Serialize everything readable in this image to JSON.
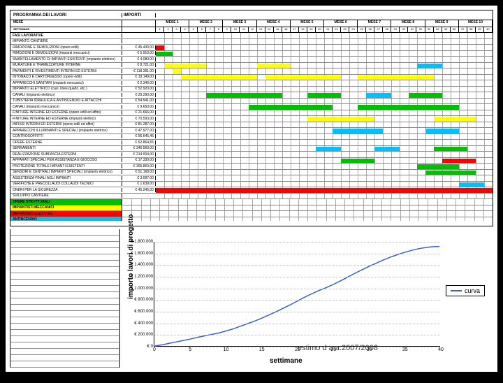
{
  "header": {
    "col1": "PROGRAMMA DEI LAVORI",
    "col2": "IMPORTI"
  },
  "subheader": {
    "label1": "MESE",
    "label2": "SETTIMANE"
  },
  "months": [
    "MESE 1",
    "MESE 2",
    "MESE 3",
    "MESE 4",
    "MESE 5",
    "MESE 6",
    "MESE 7",
    "MESE 8",
    "MESE 9",
    "MESE 10"
  ],
  "weeks_per_month": 4,
  "total_weeks": 40,
  "section_label": "FASI LAVORATIVE",
  "colors": {
    "red": "#ff0000",
    "yellow": "#ffff00",
    "green": "#00c000",
    "cyan": "#00c0ff",
    "row_border": "#888888",
    "grid": "#aaaaaa",
    "curve": "#3a5fcd"
  },
  "tasks": [
    {
      "label": "IMPIANTO CANTIERE",
      "amount": "",
      "bars": []
    },
    {
      "label": "RIMOZIONE E DEMOLIZIONI (opere edili)",
      "amount": "€ 45.430,00",
      "bars": [
        {
          "s": 0,
          "e": 1,
          "c": "red"
        }
      ]
    },
    {
      "label": "RIMOZIONI E DEMOLIZIONI (impianti meccanici)",
      "amount": "€ 5.910,00",
      "bars": [
        {
          "s": 0,
          "e": 2,
          "c": "green"
        }
      ]
    },
    {
      "label": "SMANTELLAMENTO DI IMPIANTI ESISTENTI (impianto elettrico)",
      "amount": "€ 4.080,00",
      "bars": []
    },
    {
      "label": "MURATURE E TRAMEZZATURE INTERNE",
      "amount": "€ 8.721,00",
      "bars": [
        {
          "s": 1,
          "e": 6,
          "c": "yellow"
        },
        {
          "s": 12,
          "e": 16,
          "c": "yellow"
        },
        {
          "s": 31,
          "e": 34,
          "c": "cyan"
        }
      ]
    },
    {
      "label": "PAVIMENTI E RIVESTIMENTI INTERNI ED ESTERNI",
      "amount": "€ 118.391,00",
      "bars": [
        {
          "s": 2,
          "e": 3,
          "c": "yellow"
        }
      ]
    },
    {
      "label": "INTONACO E CARTONGESSO (opere edili)",
      "amount": "€ 19.149,00",
      "bars": [
        {
          "s": 3,
          "e": 12,
          "c": "yellow"
        },
        {
          "s": 13,
          "e": 22,
          "c": "yellow"
        },
        {
          "s": 24,
          "e": 33,
          "c": "yellow"
        }
      ]
    },
    {
      "label": "APPARECCHI SANITARI (impianti meccanici)",
      "amount": "€ 2.340,00",
      "bars": []
    },
    {
      "label": "IMPIANTO ELETTRICO (cavi, linee,quadri, etc.)",
      "amount": "€ 52.920,00",
      "bars": []
    },
    {
      "label": "CANALI (impianto elettrico)",
      "amount": "€ 29.290,00",
      "bars": [
        {
          "s": 6,
          "e": 15,
          "c": "green"
        },
        {
          "s": 18,
          "e": 22,
          "c": "green"
        },
        {
          "s": 25,
          "e": 28,
          "c": "cyan"
        },
        {
          "s": 30,
          "e": 34,
          "c": "green"
        }
      ]
    },
    {
      "label": "TUBISTERIA IDRAULICA E ANTINCENDIO E ATTACCHI",
      "amount": "€ 54.541,00",
      "bars": []
    },
    {
      "label": "CANALI (impianto meccanico)",
      "amount": "€ 9.650,00",
      "bars": [
        {
          "s": 11,
          "e": 21,
          "c": "green"
        },
        {
          "s": 24,
          "e": 36,
          "c": "green"
        }
      ]
    },
    {
      "label": "FINITURE INTERNE ED ESTERNE (opere edili ed affini)",
      "amount": "€ 21.666,00",
      "bars": []
    },
    {
      "label": "FINITURE INTERNE ED ESTERNE (impianti elettrici)",
      "amount": "€ 70.593,00",
      "bars": [
        {
          "s": 18,
          "e": 26,
          "c": "yellow"
        },
        {
          "s": 33,
          "e": 38,
          "c": "yellow"
        }
      ]
    },
    {
      "label": "INFISSI INTERNI ED ESTERNI (opere edili ed affini)",
      "amount": "€ 81.287,00",
      "bars": []
    },
    {
      "label": "APPARECCHI ILLUMINANTI E SPECIALI (impianto elettrico)",
      "amount": "€ 47.977,00",
      "bars": [
        {
          "s": 21,
          "e": 27,
          "c": "cyan"
        },
        {
          "s": 32,
          "e": 36,
          "c": "cyan"
        }
      ]
    },
    {
      "label": "CONTROSOFFITTI",
      "amount": "€ 56.645,45",
      "bars": []
    },
    {
      "label": "OPERE ESTERNE",
      "amount": "€ 62.864,55",
      "bars": []
    },
    {
      "label": "SERRAMENTI",
      "amount": "€ 346.560,00",
      "bars": [
        {
          "s": 19,
          "e": 22,
          "c": "cyan"
        },
        {
          "s": 26,
          "e": 29,
          "c": "cyan"
        },
        {
          "s": 33,
          "e": 37,
          "c": "green"
        }
      ]
    },
    {
      "label": "REALIZZAZIONE SUBFASCIA ESTERNI",
      "amount": "€ 214.004,00",
      "bars": []
    },
    {
      "label": "APPARATI SPECIALI PER ASSISTANZA E GIOCOSO",
      "amount": "€ 17.330,00",
      "bars": [
        {
          "s": 22,
          "e": 26,
          "c": "green"
        },
        {
          "s": 34,
          "e": 38,
          "c": "red"
        }
      ]
    },
    {
      "label": "PROTEZIONE TOTALE IMPIANTI ESISTENTI",
      "amount": "€ 305.860,00",
      "bars": [
        {
          "s": 31,
          "e": 36,
          "c": "green"
        }
      ]
    },
    {
      "label": "SENSORI E CENTRALI IMPIANTI SPECIALI (impianto elettrico)",
      "amount": "€ 51.168,00",
      "bars": [
        {
          "s": 32,
          "e": 38,
          "c": "green"
        }
      ]
    },
    {
      "label": "ASSISTENZA FINALI AGLI IMPIANTI",
      "amount": "€ 3.097,00",
      "bars": []
    },
    {
      "label": "VERIFICHE E PRECOLLAUDI COLLAUDI TECNICI",
      "amount": "€ 1.639,00",
      "bars": [
        {
          "s": 36,
          "e": 39,
          "c": "cyan"
        }
      ]
    },
    {
      "label": "ONERI PER LA SICUREZZA",
      "amount": "€ 45.245,00",
      "bars": [
        {
          "s": 0,
          "e": 40,
          "c": "red"
        }
      ]
    },
    {
      "label": "SVILUPPO CANTIERE",
      "amount": "",
      "bars": []
    }
  ],
  "legend": [
    {
      "label": "OPERE STRUTTURALI",
      "color": "green"
    },
    {
      "label": "IMPIANTISTI MECCANICI",
      "color": "yellow"
    },
    {
      "label": "IMPIANTISTI ELETTRICI",
      "color": "red"
    },
    {
      "label": "ANTINCENDIO",
      "color": "cyan"
    }
  ],
  "chart": {
    "type": "line",
    "ylabel": "importo lavori di progetto",
    "xlabel": "settimane",
    "legend_label": "curva",
    "curve_color": "#3a5fcd",
    "xlim": [
      0,
      40
    ],
    "ylim": [
      0,
      1800000
    ],
    "xtick_step": 5,
    "ytick_step": 200000,
    "xticks": [
      0,
      5,
      10,
      15,
      20,
      25,
      30,
      35,
      40
    ],
    "yticks": [
      0,
      200000,
      400000,
      600000,
      800000,
      1000000,
      1200000,
      1400000,
      1600000,
      1800000
    ],
    "grid_color": "#bbbbbb",
    "points": [
      [
        0,
        0
      ],
      [
        1,
        20000
      ],
      [
        2,
        45000
      ],
      [
        3,
        70000
      ],
      [
        4,
        95000
      ],
      [
        5,
        120000
      ],
      [
        6,
        150000
      ],
      [
        7,
        175000
      ],
      [
        8,
        200000
      ],
      [
        9,
        225000
      ],
      [
        10,
        260000
      ],
      [
        11,
        295000
      ],
      [
        12,
        340000
      ],
      [
        13,
        385000
      ],
      [
        14,
        430000
      ],
      [
        15,
        480000
      ],
      [
        16,
        535000
      ],
      [
        17,
        590000
      ],
      [
        18,
        650000
      ],
      [
        19,
        710000
      ],
      [
        20,
        775000
      ],
      [
        21,
        840000
      ],
      [
        22,
        900000
      ],
      [
        23,
        955000
      ],
      [
        24,
        1005000
      ],
      [
        25,
        1060000
      ],
      [
        26,
        1120000
      ],
      [
        27,
        1185000
      ],
      [
        28,
        1250000
      ],
      [
        29,
        1310000
      ],
      [
        30,
        1370000
      ],
      [
        31,
        1425000
      ],
      [
        32,
        1480000
      ],
      [
        33,
        1530000
      ],
      [
        34,
        1575000
      ],
      [
        35,
        1615000
      ],
      [
        36,
        1650000
      ],
      [
        37,
        1680000
      ],
      [
        38,
        1700000
      ],
      [
        39,
        1715000
      ],
      [
        40,
        1720000
      ]
    ],
    "footer": "estimo d a.a.2007/2008"
  }
}
